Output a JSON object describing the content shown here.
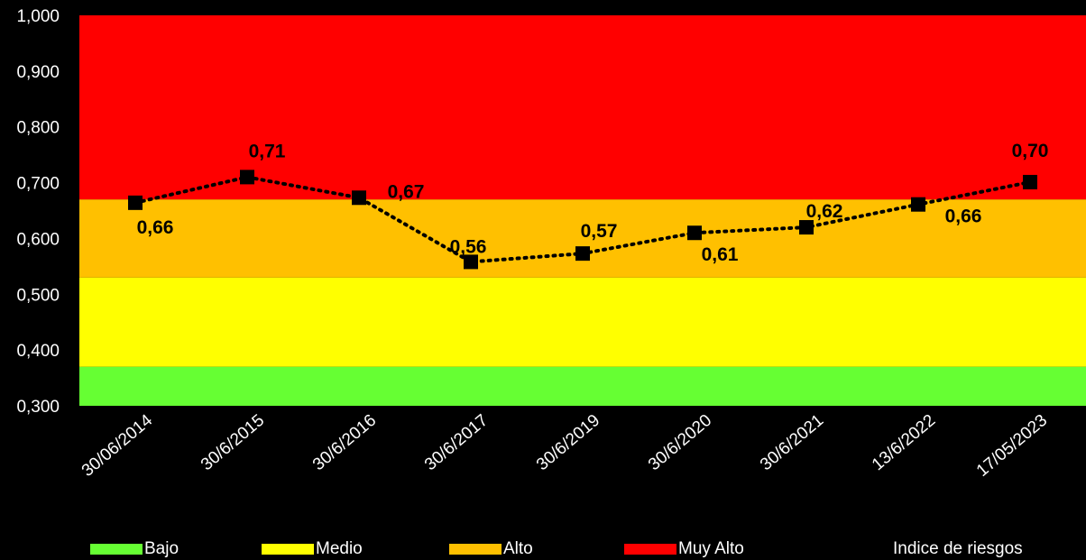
{
  "chart_data": {
    "type": "line",
    "categories": [
      "30/06/2014",
      "30/6/2015",
      "30/6/2016",
      "30/6/2017",
      "30/6/2019",
      "30/6/2020",
      "30/6/2021",
      "13/6/2022",
      "17/05/2023"
    ],
    "series": [
      {
        "name": "Indice de riesgos",
        "values": [
          0.664,
          0.71,
          0.673,
          0.558,
          0.573,
          0.61,
          0.62,
          0.661,
          0.701
        ],
        "labels": [
          "0,66",
          "0,71",
          "0,67",
          "0,56",
          "0,57",
          "0,61",
          "0,62",
          "0,66",
          "0,70"
        ],
        "color": "#000000",
        "marker": "square",
        "line_style": "dotted"
      }
    ],
    "bands": [
      {
        "name": "Bajo",
        "from": 0.3,
        "to": 0.37,
        "color": "#66FF33"
      },
      {
        "name": "Medio",
        "from": 0.37,
        "to": 0.53,
        "color": "#FFFF00"
      },
      {
        "name": "Alto",
        "from": 0.53,
        "to": 0.67,
        "color": "#FFC000"
      },
      {
        "name": "Muy Alto",
        "from": 0.67,
        "to": 1.0,
        "color": "#FF0000"
      }
    ],
    "ylim": [
      0.3,
      1.0
    ],
    "yticks": [
      1.0,
      0.9,
      0.8,
      0.7,
      0.6,
      0.5,
      0.4,
      0.3
    ],
    "ytick_labels": [
      "1,000",
      "0,900",
      "0,800",
      "0,700",
      "0,600",
      "0,500",
      "0,400",
      "0,300"
    ],
    "title": "",
    "xlabel": "",
    "ylabel": "",
    "grid": false,
    "legend_position": "bottom"
  },
  "legend": {
    "items": [
      {
        "label": "Bajo",
        "color": "#66FF33"
      },
      {
        "label": "Medio",
        "color": "#FFFF00"
      },
      {
        "label": "Alto",
        "color": "#FFC000"
      },
      {
        "label": "Muy Alto",
        "color": "#FF0000"
      }
    ],
    "series_label": "Indice de riesgos"
  }
}
